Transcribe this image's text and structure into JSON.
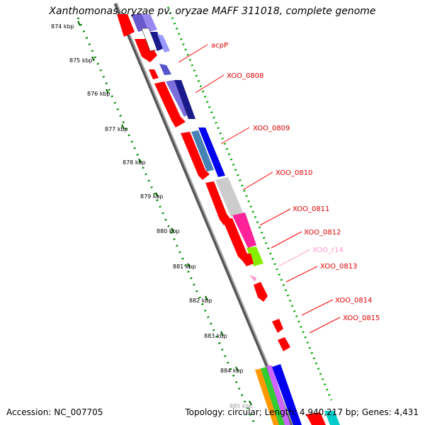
{
  "title": "Xanthomonas oryzae pv. oryzae MAFF 311018, complete genome",
  "ruler": {
    "labels": [
      "874 kbp",
      "875 kbp",
      "876 kbp",
      "877 kbp",
      "878 kbp",
      "879 kbp",
      "880 kbp",
      "881 kbp",
      "882 kbp",
      "883 kbp",
      "884 kbp",
      "885 kbp"
    ]
  },
  "features": [
    {
      "label": "acpP",
      "color": "#dd0000"
    },
    {
      "label": "XOO_0808",
      "color": "#dd0000"
    },
    {
      "label": "XOO_0809",
      "color": "#dd0000"
    },
    {
      "label": "XOO_0810",
      "color": "#dd0000"
    },
    {
      "label": "XOO_0811",
      "color": "#dd0000"
    },
    {
      "label": "XOO_0812",
      "color": "#dd0000"
    },
    {
      "label": "XOO_r14",
      "color": "#ff99cc"
    },
    {
      "label": "XOO_0813",
      "color": "#dd0000"
    },
    {
      "label": "XOO_0814",
      "color": "#dd0000"
    },
    {
      "label": "XOO_0815",
      "color": "#dd0000"
    }
  ],
  "colors": {
    "gene": "#ff0000",
    "rna": "#ff99cc",
    "backbone": "#888888",
    "ruler_dots": "#008800",
    "label_red": "#dd0000"
  },
  "footer": {
    "accession": "Accession: NC_007705",
    "topology": "Topology: circular; Length: 4,940,217 bp; Genes: 4,431"
  }
}
